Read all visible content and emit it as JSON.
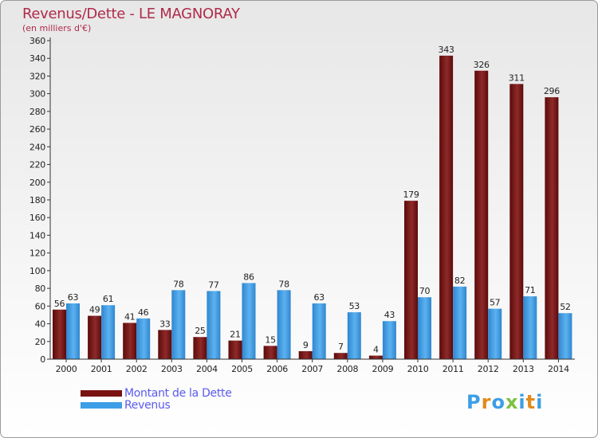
{
  "chart_data": {
    "type": "bar",
    "title": "Revenus/Dette - LE MAGNORAY",
    "subtitle": "(en milliers d'€)",
    "categories": [
      "2000",
      "2001",
      "2002",
      "2003",
      "2004",
      "2005",
      "2006",
      "2007",
      "2008",
      "2009",
      "2010",
      "2011",
      "2012",
      "2013",
      "2014"
    ],
    "series": [
      {
        "name": "Montant de la Dette",
        "color": "#7a1212",
        "values": [
          56,
          49,
          41,
          33,
          25,
          21,
          15,
          9,
          7,
          4,
          179,
          343,
          326,
          311,
          296
        ]
      },
      {
        "name": "Revenus",
        "color": "#3d9ee6",
        "values": [
          63,
          61,
          46,
          78,
          77,
          86,
          78,
          63,
          53,
          43,
          70,
          82,
          57,
          71,
          52
        ]
      }
    ],
    "ylim": [
      0,
      360
    ],
    "ytick_step": 20,
    "grid": false,
    "legend_position": "bottom-left"
  },
  "logo": {
    "text": "Proxiti",
    "colors": [
      "#3d9ee6",
      "#e28a1c",
      "#3d9ee6",
      "#7cc142",
      "#3d9ee6",
      "#e28a1c",
      "#3d9ee6"
    ]
  }
}
